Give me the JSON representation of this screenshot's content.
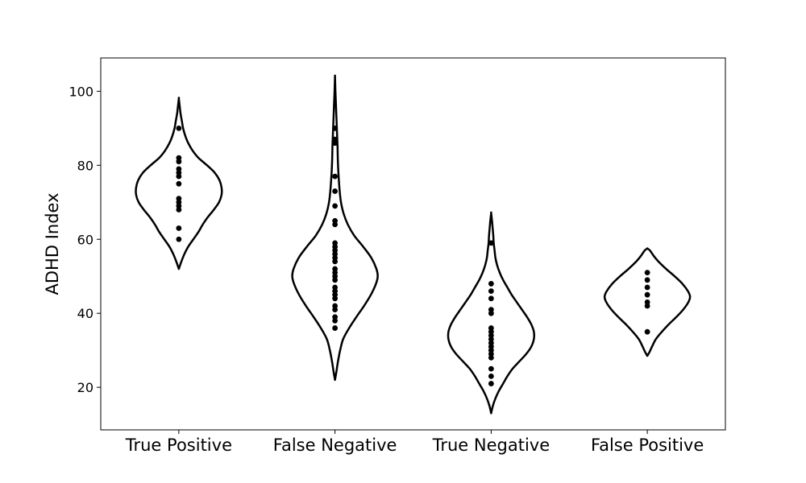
{
  "chart_data": {
    "type": "violin",
    "ylabel": "ADHD Index",
    "xlabel": "",
    "ylim": [
      8.5,
      109
    ],
    "yticks": [
      20,
      40,
      60,
      80,
      100
    ],
    "grid": false,
    "colors": {
      "outline": "#000000",
      "points": "#000000",
      "fill": "#ffffff"
    },
    "categories": [
      "True Positive",
      "False Negative",
      "True Negative",
      "False Positive"
    ],
    "series": [
      {
        "category": "True Positive",
        "points": [
          90,
          82,
          81,
          79,
          78,
          77,
          75,
          71,
          70,
          69,
          68,
          63,
          60
        ],
        "range": [
          52,
          98
        ],
        "density": [
          [
            52,
            0.0
          ],
          [
            54,
            0.06
          ],
          [
            56,
            0.13
          ],
          [
            58,
            0.22
          ],
          [
            60,
            0.34
          ],
          [
            62,
            0.46
          ],
          [
            64,
            0.56
          ],
          [
            66,
            0.68
          ],
          [
            68,
            0.82
          ],
          [
            70,
            0.94
          ],
          [
            72,
            1.0
          ],
          [
            74,
            1.0
          ],
          [
            76,
            0.95
          ],
          [
            78,
            0.84
          ],
          [
            80,
            0.66
          ],
          [
            82,
            0.46
          ],
          [
            84,
            0.32
          ],
          [
            86,
            0.22
          ],
          [
            88,
            0.15
          ],
          [
            90,
            0.1
          ],
          [
            92,
            0.07
          ],
          [
            94,
            0.04
          ],
          [
            96,
            0.02
          ],
          [
            98,
            0.0
          ]
        ]
      },
      {
        "category": "False Negative",
        "points": [
          90,
          87,
          86,
          77,
          73,
          69,
          65,
          64,
          59,
          58,
          57,
          56,
          55,
          54,
          52,
          51,
          50,
          49,
          47,
          46,
          45,
          44,
          42,
          41,
          39,
          38,
          36
        ],
        "range": [
          22,
          104
        ],
        "density": [
          [
            22,
            0.0
          ],
          [
            24,
            0.03
          ],
          [
            27,
            0.07
          ],
          [
            30,
            0.12
          ],
          [
            33,
            0.19
          ],
          [
            36,
            0.33
          ],
          [
            39,
            0.5
          ],
          [
            42,
            0.68
          ],
          [
            45,
            0.84
          ],
          [
            48,
            0.96
          ],
          [
            50,
            1.0
          ],
          [
            52,
            0.97
          ],
          [
            55,
            0.85
          ],
          [
            58,
            0.66
          ],
          [
            61,
            0.45
          ],
          [
            64,
            0.3
          ],
          [
            67,
            0.2
          ],
          [
            70,
            0.14
          ],
          [
            73,
            0.11
          ],
          [
            76,
            0.09
          ],
          [
            79,
            0.075
          ],
          [
            82,
            0.065
          ],
          [
            85,
            0.06
          ],
          [
            88,
            0.05
          ],
          [
            91,
            0.04
          ],
          [
            94,
            0.03
          ],
          [
            97,
            0.02
          ],
          [
            100,
            0.01
          ],
          [
            102,
            0.005
          ],
          [
            104,
            0.0
          ]
        ]
      },
      {
        "category": "True Negative",
        "points": [
          59,
          48,
          46,
          44,
          41,
          40,
          36,
          35,
          34,
          33,
          32,
          31,
          30,
          29,
          28,
          25,
          23,
          21
        ],
        "range": [
          13,
          67
        ],
        "density": [
          [
            13,
            0.0
          ],
          [
            15,
            0.04
          ],
          [
            17,
            0.1
          ],
          [
            19,
            0.18
          ],
          [
            21,
            0.28
          ],
          [
            23,
            0.38
          ],
          [
            25,
            0.5
          ],
          [
            27,
            0.66
          ],
          [
            29,
            0.82
          ],
          [
            31,
            0.94
          ],
          [
            33,
            1.0
          ],
          [
            35,
            1.0
          ],
          [
            37,
            0.94
          ],
          [
            39,
            0.84
          ],
          [
            41,
            0.72
          ],
          [
            43,
            0.6
          ],
          [
            45,
            0.48
          ],
          [
            47,
            0.38
          ],
          [
            49,
            0.28
          ],
          [
            51,
            0.2
          ],
          [
            53,
            0.14
          ],
          [
            55,
            0.1
          ],
          [
            57,
            0.08
          ],
          [
            59,
            0.06
          ],
          [
            61,
            0.05
          ],
          [
            63,
            0.035
          ],
          [
            65,
            0.02
          ],
          [
            67,
            0.0
          ]
        ]
      },
      {
        "category": "False Positive",
        "points": [
          51,
          49,
          47,
          45,
          43,
          42,
          35
        ],
        "range": [
          28.5,
          57.5
        ],
        "density": [
          [
            28.5,
            0.0
          ],
          [
            29.5,
            0.05
          ],
          [
            31,
            0.11
          ],
          [
            33,
            0.2
          ],
          [
            35,
            0.34
          ],
          [
            37,
            0.5
          ],
          [
            39,
            0.68
          ],
          [
            41,
            0.84
          ],
          [
            43,
            0.96
          ],
          [
            44.5,
            1.0
          ],
          [
            46,
            0.95
          ],
          [
            48,
            0.82
          ],
          [
            50,
            0.64
          ],
          [
            52,
            0.44
          ],
          [
            54,
            0.26
          ],
          [
            55.5,
            0.15
          ],
          [
            57,
            0.06
          ],
          [
            57.5,
            0.0
          ]
        ]
      }
    ]
  }
}
